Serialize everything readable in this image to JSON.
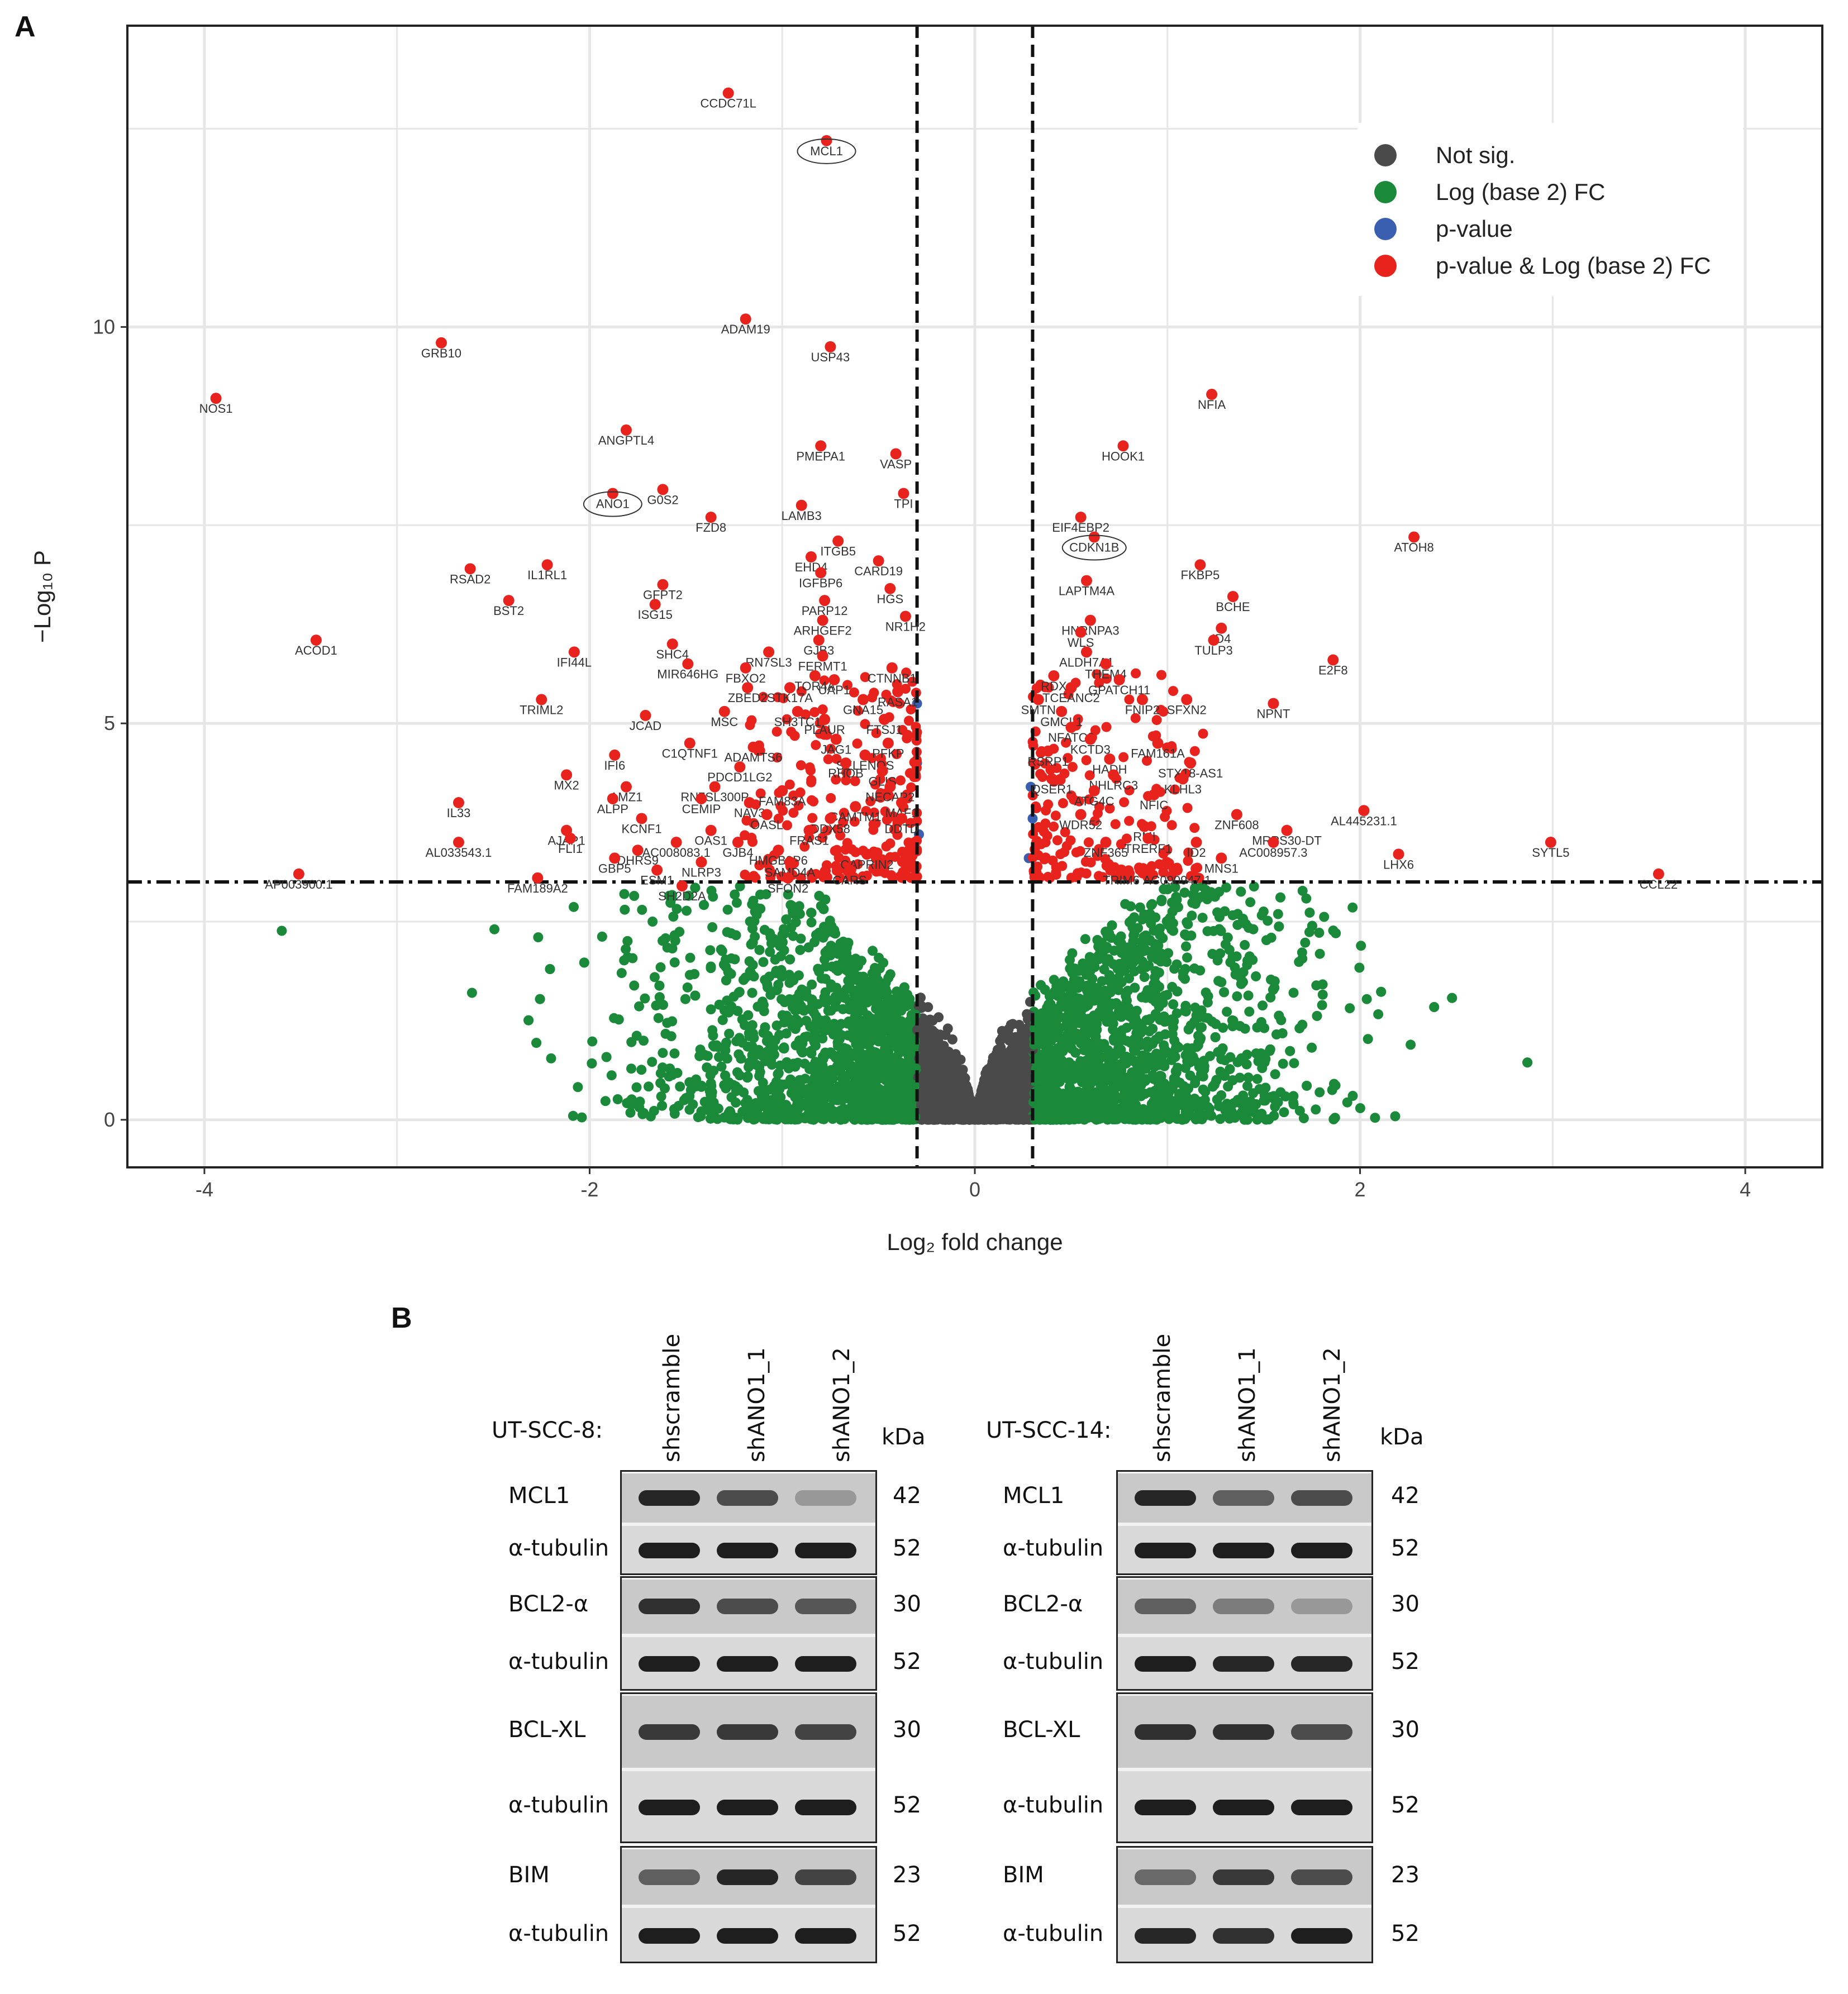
{
  "panel_a_letter": "A",
  "panel_b_letter": "B",
  "chart_data": {
    "type": "scatter",
    "subtype": "volcano",
    "xlabel": "Log₂ fold change",
    "ylabel": "−Log₁₀ P",
    "xlim": [
      -4.4,
      4.4
    ],
    "ylim": [
      -0.6,
      13.8
    ],
    "x_ticks": [
      -4,
      -2,
      0,
      2,
      4
    ],
    "x_tick_labels": [
      "-4",
      "-2",
      "0",
      "2",
      "4"
    ],
    "y_ticks": [
      0,
      5,
      10
    ],
    "y_tick_labels": [
      "0",
      "5",
      "10"
    ],
    "grid": true,
    "fc_cutoff": 0.3,
    "p_cutoff_log10": 3.0,
    "legend_position": "top-right",
    "legend": [
      {
        "label": "Not sig.",
        "color": "#4a4a4a"
      },
      {
        "label": "Log (base 2) FC",
        "color": "#1a8a3a"
      },
      {
        "label": "p-value",
        "color": "#3a5fb0"
      },
      {
        "label": "p-value & Log (base 2) FC",
        "color": "#e8221c"
      }
    ],
    "colors": {
      "ns": "#4a4a4a",
      "fc": "#1a8a3a",
      "p": "#3a5fb0",
      "both": "#e8221c"
    },
    "circled_genes": [
      "MCL1",
      "ANO1",
      "CDKN1B"
    ],
    "labeled_points": [
      {
        "gene": "CCDC71L",
        "x": -1.28,
        "y": 12.95
      },
      {
        "gene": "MCL1",
        "x": -0.77,
        "y": 12.35
      },
      {
        "gene": "ADAM19",
        "x": -1.19,
        "y": 10.1
      },
      {
        "gene": "USP43",
        "x": -0.75,
        "y": 9.75
      },
      {
        "gene": "GRB10",
        "x": -2.77,
        "y": 9.8
      },
      {
        "gene": "NOS1",
        "x": -3.94,
        "y": 9.1
      },
      {
        "gene": "ANGPTL4",
        "x": -1.81,
        "y": 8.7
      },
      {
        "gene": "PMEPA1",
        "x": -0.8,
        "y": 8.5
      },
      {
        "gene": "VASP",
        "x": -0.41,
        "y": 8.4
      },
      {
        "gene": "ANO1",
        "x": -1.88,
        "y": 7.9
      },
      {
        "gene": "G0S2",
        "x": -1.62,
        "y": 7.95
      },
      {
        "gene": "TPI",
        "x": -0.37,
        "y": 7.9
      },
      {
        "gene": "LAMB3",
        "x": -0.9,
        "y": 7.75
      },
      {
        "gene": "FZD8",
        "x": -1.37,
        "y": 7.6
      },
      {
        "gene": "ITGB5",
        "x": -0.71,
        "y": 7.3
      },
      {
        "gene": "EHD4",
        "x": -0.85,
        "y": 7.1
      },
      {
        "gene": "CARD19",
        "x": -0.5,
        "y": 7.05
      },
      {
        "gene": "IGFBP6",
        "x": -0.8,
        "y": 6.9
      },
      {
        "gene": "RSAD2",
        "x": -2.62,
        "y": 6.95
      },
      {
        "gene": "IL1RL1",
        "x": -2.22,
        "y": 7.0
      },
      {
        "gene": "HGS",
        "x": -0.44,
        "y": 6.7
      },
      {
        "gene": "GFPT2",
        "x": -1.62,
        "y": 6.75
      },
      {
        "gene": "BST2",
        "x": -2.42,
        "y": 6.55
      },
      {
        "gene": "ISG15",
        "x": -1.66,
        "y": 6.5
      },
      {
        "gene": "PARP12",
        "x": -0.78,
        "y": 6.55
      },
      {
        "gene": "ARHGEF2",
        "x": -0.79,
        "y": 6.3
      },
      {
        "gene": "NR1H2",
        "x": -0.36,
        "y": 6.35
      },
      {
        "gene": "GJB3",
        "x": -0.81,
        "y": 6.05
      },
      {
        "gene": "ACOD1",
        "x": -3.42,
        "y": 6.05
      },
      {
        "gene": "SHC4",
        "x": -1.57,
        "y": 6.0
      },
      {
        "gene": "IFI44L",
        "x": -2.08,
        "y": 5.9
      },
      {
        "gene": "RN7SL3",
        "x": -1.07,
        "y": 5.9
      },
      {
        "gene": "FERMT1",
        "x": -0.79,
        "y": 5.85
      },
      {
        "gene": "MIR646HG",
        "x": -1.49,
        "y": 5.75
      },
      {
        "gene": "CTNNB1",
        "x": -0.43,
        "y": 5.7
      },
      {
        "gene": "FBXO2",
        "x": -1.19,
        "y": 5.7
      },
      {
        "gene": "TOR4A",
        "x": -0.83,
        "y": 5.6
      },
      {
        "gene": "UAP1",
        "x": -0.73,
        "y": 5.55
      },
      {
        "gene": "STK17A",
        "x": -0.96,
        "y": 5.45
      },
      {
        "gene": "ZBED2",
        "x": -1.18,
        "y": 5.45
      },
      {
        "gene": "RASA1",
        "x": -0.4,
        "y": 5.4
      },
      {
        "gene": "GNA15",
        "x": -0.58,
        "y": 5.3
      },
      {
        "gene": "TRIML2",
        "x": -2.25,
        "y": 5.3
      },
      {
        "gene": "SH3TC1",
        "x": -0.92,
        "y": 5.15
      },
      {
        "gene": "MSC",
        "x": -1.3,
        "y": 5.15
      },
      {
        "gene": "JCAD",
        "x": -1.71,
        "y": 5.1
      },
      {
        "gene": "FTSJ1",
        "x": -0.47,
        "y": 5.05
      },
      {
        "gene": "PLAUR",
        "x": -0.78,
        "y": 5.05
      },
      {
        "gene": "C1QTNF1",
        "x": -1.48,
        "y": 4.75
      },
      {
        "gene": "JAG1",
        "x": -0.72,
        "y": 4.8
      },
      {
        "gene": "PFKP",
        "x": -0.45,
        "y": 4.75
      },
      {
        "gene": "ADAMTS6",
        "x": -1.15,
        "y": 4.7
      },
      {
        "gene": "SELENOS",
        "x": -0.57,
        "y": 4.6
      },
      {
        "gene": "IFI6",
        "x": -1.87,
        "y": 4.6
      },
      {
        "gene": "RHOB",
        "x": -0.67,
        "y": 4.5
      },
      {
        "gene": "PDCD1LG2",
        "x": -1.22,
        "y": 4.45
      },
      {
        "gene": "GLIS",
        "x": -0.48,
        "y": 4.4
      },
      {
        "gene": "MX2",
        "x": -2.12,
        "y": 4.35
      },
      {
        "gene": "AMZ1",
        "x": -1.81,
        "y": 4.2
      },
      {
        "gene": "RN7SL300P",
        "x": -1.35,
        "y": 4.2
      },
      {
        "gene": "FAM83A",
        "x": -1.0,
        "y": 4.15
      },
      {
        "gene": "NECAP2",
        "x": -0.44,
        "y": 4.2
      },
      {
        "gene": "ALPP",
        "x": -1.88,
        "y": 4.05
      },
      {
        "gene": "CEMIP",
        "x": -1.42,
        "y": 4.05
      },
      {
        "gene": "NAV3",
        "x": -1.17,
        "y": 4.0
      },
      {
        "gene": "MAF1",
        "x": -0.38,
        "y": 4.0
      },
      {
        "gene": "IL33",
        "x": -2.68,
        "y": 4.0
      },
      {
        "gene": "OASL",
        "x": -1.08,
        "y": 3.85
      },
      {
        "gene": "CAMTM1",
        "x": -0.62,
        "y": 3.95
      },
      {
        "gene": "KCNF1",
        "x": -1.73,
        "y": 3.8
      },
      {
        "gene": "DDX58",
        "x": -0.75,
        "y": 3.8
      },
      {
        "gene": "DDTD",
        "x": -0.38,
        "y": 3.8
      },
      {
        "gene": "OAS1",
        "x": -1.37,
        "y": 3.65
      },
      {
        "gene": "FRAS1",
        "x": -0.86,
        "y": 3.65
      },
      {
        "gene": "AJAP1",
        "x": -2.12,
        "y": 3.65
      },
      {
        "gene": "FLI1",
        "x": -2.1,
        "y": 3.55
      },
      {
        "gene": "AC008083.1",
        "x": -1.55,
        "y": 3.5
      },
      {
        "gene": "GJB4",
        "x": -1.23,
        "y": 3.5
      },
      {
        "gene": "AL033543.1",
        "x": -2.68,
        "y": 3.5
      },
      {
        "gene": "DHRS9",
        "x": -1.75,
        "y": 3.4
      },
      {
        "gene": "HMGB3P6",
        "x": -1.02,
        "y": 3.4
      },
      {
        "gene": "CAPRIN2",
        "x": -0.56,
        "y": 3.35
      },
      {
        "gene": "GBP5",
        "x": -1.87,
        "y": 3.3
      },
      {
        "gene": "NLRP3",
        "x": -1.42,
        "y": 3.25
      },
      {
        "gene": "SAMD4A",
        "x": -0.96,
        "y": 3.25
      },
      {
        "gene": "ESM1",
        "x": -1.65,
        "y": 3.15
      },
      {
        "gene": "CARS",
        "x": -0.65,
        "y": 3.15
      },
      {
        "gene": "SFON2",
        "x": -0.97,
        "y": 3.05
      },
      {
        "gene": "AP003900.1",
        "x": -3.51,
        "y": 3.1
      },
      {
        "gene": "FAM189A2",
        "x": -2.27,
        "y": 3.05
      },
      {
        "gene": "SH2D2A",
        "x": -1.52,
        "y": 2.95
      },
      {
        "gene": "NFIA",
        "x": 1.23,
        "y": 9.15
      },
      {
        "gene": "HOOK1",
        "x": 0.77,
        "y": 8.5
      },
      {
        "gene": "EIF4EBP2",
        "x": 0.55,
        "y": 7.6
      },
      {
        "gene": "CDKN1B",
        "x": 0.62,
        "y": 7.35
      },
      {
        "gene": "ATOH8",
        "x": 2.28,
        "y": 7.35
      },
      {
        "gene": "FKBP5",
        "x": 1.17,
        "y": 7.0
      },
      {
        "gene": "LAPTM4A",
        "x": 0.58,
        "y": 6.8
      },
      {
        "gene": "BCHE",
        "x": 1.34,
        "y": 6.6
      },
      {
        "gene": "HNRNPA3",
        "x": 0.6,
        "y": 6.3
      },
      {
        "gene": "WLS",
        "x": 0.55,
        "y": 6.15
      },
      {
        "gene": "ID4",
        "x": 1.28,
        "y": 6.2
      },
      {
        "gene": "TULP3",
        "x": 1.24,
        "y": 6.05
      },
      {
        "gene": "ALDH7A1",
        "x": 0.58,
        "y": 5.9
      },
      {
        "gene": "E2F8",
        "x": 1.86,
        "y": 5.8
      },
      {
        "gene": "THEM4",
        "x": 0.68,
        "y": 5.75
      },
      {
        "gene": "RDX",
        "x": 0.41,
        "y": 5.6
      },
      {
        "gene": "GPATCH11",
        "x": 0.75,
        "y": 5.55
      },
      {
        "gene": "TCEANC2",
        "x": 0.5,
        "y": 5.45
      },
      {
        "gene": "FNIP2",
        "x": 0.87,
        "y": 5.3
      },
      {
        "gene": "SFXN2",
        "x": 1.1,
        "y": 5.3
      },
      {
        "gene": "NPNT",
        "x": 1.55,
        "y": 5.25
      },
      {
        "gene": "SMTN",
        "x": 0.33,
        "y": 5.3
      },
      {
        "gene": "GMCL1",
        "x": 0.45,
        "y": 5.15
      },
      {
        "gene": "NFATC3",
        "x": 0.5,
        "y": 4.95
      },
      {
        "gene": "KCTD3",
        "x": 0.6,
        "y": 4.8
      },
      {
        "gene": "FAM161A",
        "x": 0.95,
        "y": 4.75
      },
      {
        "gene": "RSRP1",
        "x": 0.38,
        "y": 4.65
      },
      {
        "gene": "HADH",
        "x": 0.7,
        "y": 4.55
      },
      {
        "gene": "STX18-AS1",
        "x": 1.12,
        "y": 4.5
      },
      {
        "gene": "QSER1",
        "x": 0.4,
        "y": 4.3
      },
      {
        "gene": "NHLRC3",
        "x": 0.72,
        "y": 4.35
      },
      {
        "gene": "KLHL3",
        "x": 1.08,
        "y": 4.3
      },
      {
        "gene": "ATG4C",
        "x": 0.62,
        "y": 4.15
      },
      {
        "gene": "NFIC",
        "x": 0.93,
        "y": 4.1
      },
      {
        "gene": "ZNF608",
        "x": 1.36,
        "y": 3.85
      },
      {
        "gene": "AL445231.1",
        "x": 2.02,
        "y": 3.9
      },
      {
        "gene": "WDR52",
        "x": 0.55,
        "y": 3.85
      },
      {
        "gene": "RMI",
        "x": 0.88,
        "y": 3.7
      },
      {
        "gene": "MRPS30-DT",
        "x": 1.62,
        "y": 3.65
      },
      {
        "gene": "TRERF1",
        "x": 0.9,
        "y": 3.55
      },
      {
        "gene": "ID2",
        "x": 1.15,
        "y": 3.5
      },
      {
        "gene": "AC008957.3",
        "x": 1.55,
        "y": 3.5
      },
      {
        "gene": "ZNF365",
        "x": 0.68,
        "y": 3.5
      },
      {
        "gene": "MNS1",
        "x": 1.28,
        "y": 3.3
      },
      {
        "gene": "LHX6",
        "x": 2.2,
        "y": 3.35
      },
      {
        "gene": "SYTL5",
        "x": 2.99,
        "y": 3.5
      },
      {
        "gene": "AC090947.1",
        "x": 1.05,
        "y": 3.15
      },
      {
        "gene": "TRIM6",
        "x": 0.76,
        "y": 3.15
      },
      {
        "gene": "CCL22",
        "x": 3.55,
        "y": 3.1
      }
    ]
  },
  "blot_b": {
    "lanes": [
      "shscramble",
      "shANO1_1",
      "shANO1_2"
    ],
    "kda_header": "kDa",
    "left": {
      "cell_line": "UT-SCC-8:",
      "rows": [
        {
          "protein": "MCL1",
          "kda": "42",
          "intensity": [
            0.9,
            0.7,
            0.3
          ]
        },
        {
          "protein": "α-tubulin",
          "kda": "52",
          "intensity": [
            0.95,
            0.95,
            0.95
          ]
        },
        {
          "protein": "BCL2-α",
          "kda": "30",
          "intensity": [
            0.85,
            0.7,
            0.65
          ]
        },
        {
          "protein": "α-tubulin",
          "kda": "52",
          "intensity": [
            0.95,
            0.95,
            0.95
          ]
        },
        {
          "protein": "BCL-XL",
          "kda": "30",
          "intensity": [
            0.8,
            0.8,
            0.75
          ]
        },
        {
          "protein": "α-tubulin",
          "kda": "52",
          "intensity": [
            0.95,
            0.95,
            0.95
          ]
        },
        {
          "protein": "BIM",
          "kda": "23",
          "intensity": [
            0.6,
            0.9,
            0.75
          ]
        },
        {
          "protein": "α-tubulin",
          "kda": "52",
          "intensity": [
            0.95,
            0.95,
            0.95
          ]
        }
      ]
    },
    "right": {
      "cell_line": "UT-SCC-14:",
      "rows": [
        {
          "protein": "MCL1",
          "kda": "42",
          "intensity": [
            0.9,
            0.6,
            0.7
          ]
        },
        {
          "protein": "α-tubulin",
          "kda": "52",
          "intensity": [
            0.95,
            0.95,
            0.95
          ]
        },
        {
          "protein": "BCL2-α",
          "kda": "30",
          "intensity": [
            0.6,
            0.45,
            0.3
          ]
        },
        {
          "protein": "α-tubulin",
          "kda": "52",
          "intensity": [
            0.95,
            0.9,
            0.9
          ]
        },
        {
          "protein": "BCL-XL",
          "kda": "30",
          "intensity": [
            0.85,
            0.85,
            0.7
          ]
        },
        {
          "protein": "α-tubulin",
          "kda": "52",
          "intensity": [
            0.95,
            0.95,
            0.95
          ]
        },
        {
          "protein": "BIM",
          "kda": "23",
          "intensity": [
            0.55,
            0.8,
            0.7
          ]
        },
        {
          "protein": "α-tubulin",
          "kda": "52",
          "intensity": [
            0.9,
            0.85,
            0.95
          ]
        }
      ]
    }
  }
}
